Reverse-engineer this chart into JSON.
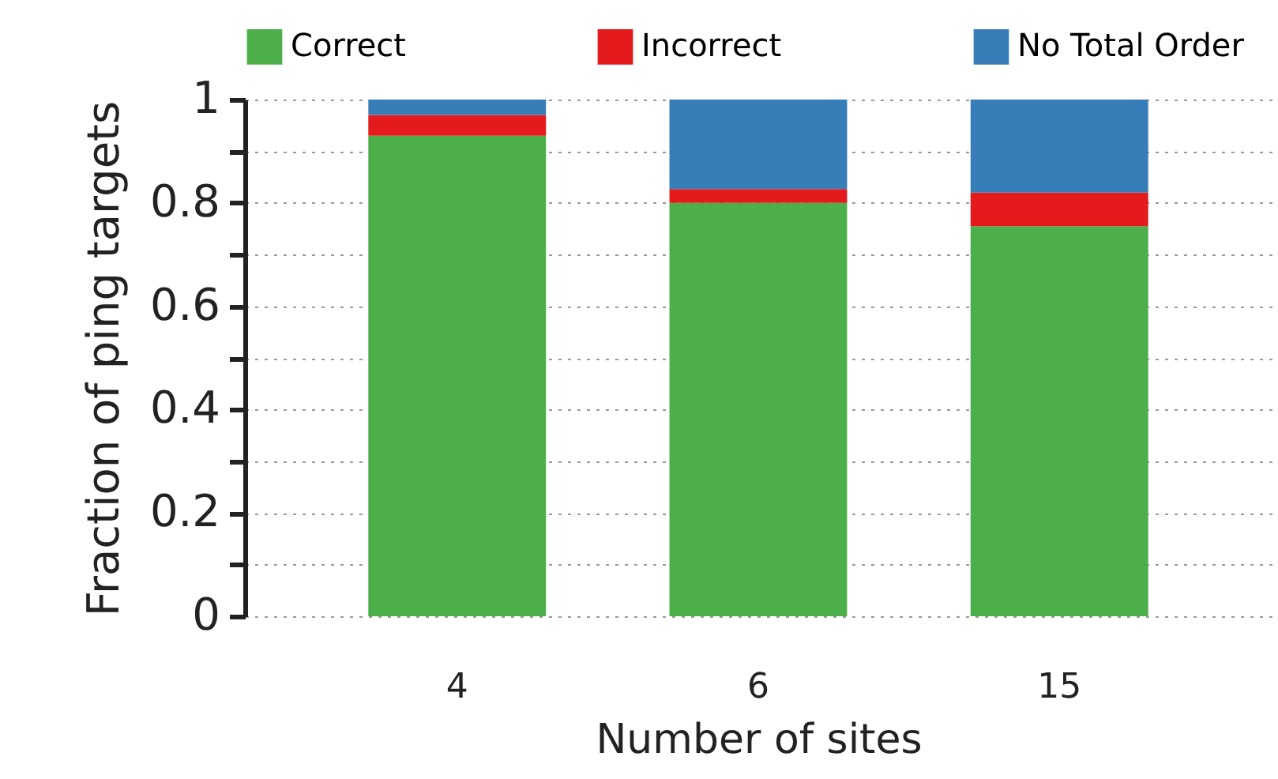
{
  "chart_data": {
    "type": "bar",
    "stacked": true,
    "xlabel": "Number of sites",
    "ylabel": "Fraction of ping targets",
    "categories": [
      "4",
      "6",
      "15"
    ],
    "series": [
      {
        "name": "Correct",
        "color": "#4daf4a",
        "values": [
          0.93,
          0.8,
          0.755
        ]
      },
      {
        "name": "Incorrect",
        "color": "#e41a1c",
        "values": [
          0.04,
          0.027,
          0.065
        ]
      },
      {
        "name": "No Total Order",
        "color": "#377eb8",
        "values": [
          0.03,
          0.173,
          0.18
        ]
      }
    ],
    "ylim": [
      0,
      1
    ],
    "yticks": [
      0,
      {
        "value": 0.1,
        "label": null
      },
      0.2,
      {
        "value": 0.3,
        "label": null
      },
      0.4,
      {
        "value": 0.5,
        "label": null
      },
      0.6,
      {
        "value": 0.7,
        "label": null
      },
      0.8,
      {
        "value": 0.9,
        "label": null
      },
      1
    ],
    "grid": "y",
    "legend": "top"
  }
}
